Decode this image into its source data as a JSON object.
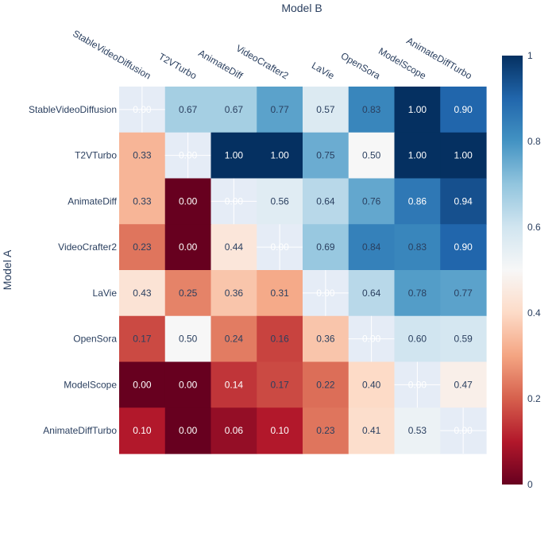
{
  "chart_data": {
    "type": "heatmap",
    "title": "",
    "xlabel": "Model B",
    "ylabel": "Model A",
    "x_categories": [
      "StableVideoDiffusion",
      "T2VTurbo",
      "AnimateDiff",
      "VideoCrafter2",
      "LaVie",
      "OpenSora",
      "ModelScope",
      "AnimateDiffTurbo"
    ],
    "y_categories": [
      "StableVideoDiffusion",
      "T2VTurbo",
      "AnimateDiff",
      "VideoCrafter2",
      "LaVie",
      "OpenSora",
      "ModelScope",
      "AnimateDiffTurbo"
    ],
    "values": [
      [
        null,
        0.67,
        0.67,
        0.77,
        0.57,
        0.83,
        1.0,
        0.9
      ],
      [
        0.33,
        null,
        1.0,
        1.0,
        0.75,
        0.5,
        1.0,
        1.0
      ],
      [
        0.33,
        0.0,
        null,
        0.56,
        0.64,
        0.76,
        0.86,
        0.94
      ],
      [
        0.23,
        0.0,
        0.44,
        null,
        0.69,
        0.84,
        0.83,
        0.9
      ],
      [
        0.43,
        0.25,
        0.36,
        0.31,
        null,
        0.64,
        0.78,
        0.77
      ],
      [
        0.17,
        0.5,
        0.24,
        0.16,
        0.36,
        null,
        0.6,
        0.59
      ],
      [
        0.0,
        0.0,
        0.14,
        0.17,
        0.22,
        0.4,
        null,
        0.47
      ],
      [
        0.1,
        0.0,
        0.06,
        0.1,
        0.23,
        0.41,
        0.53,
        null
      ]
    ],
    "diagonal_label": "0.00",
    "zrange": [
      0,
      1
    ],
    "colorscale": "RdBu",
    "colorbar": {
      "ticks": [
        "0",
        "0.2",
        "0.4",
        "0.6",
        "0.8",
        "1"
      ],
      "tick_values": [
        0,
        0.2,
        0.4,
        0.6,
        0.8,
        1
      ]
    },
    "xaxis_side": "top",
    "grid": true,
    "colors": {
      "text_dark": "#2a3f5f",
      "text_light": "#ffffff",
      "diagonal_fill": "#e5ecf6"
    }
  }
}
